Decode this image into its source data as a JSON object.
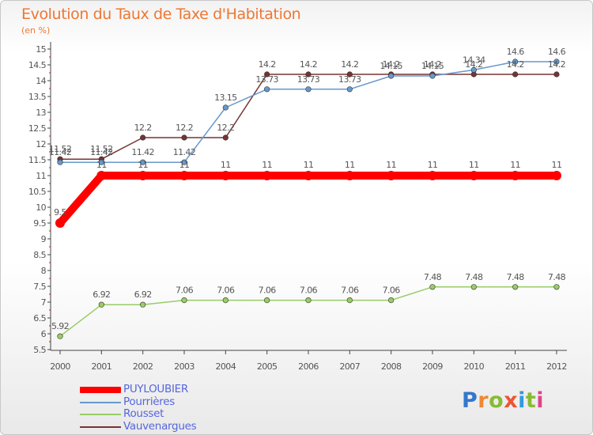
{
  "header": {
    "title": "Evolution du Taux de Taxe d'Habitation",
    "unit": "(en %)"
  },
  "logo": {
    "text": "Proxiti",
    "colors": [
      "#3377cc",
      "#ee8833",
      "#88bb33",
      "#ee5533",
      "#3399dd",
      "#88bb33",
      "#dd4488"
    ]
  },
  "chart_data": {
    "type": "line",
    "x": [
      "2000",
      "2001",
      "2002",
      "2003",
      "2004",
      "2005",
      "2006",
      "2007",
      "2008",
      "2009",
      "2010",
      "2011",
      "2012"
    ],
    "ylim": [
      5.5,
      15
    ],
    "yticks": [
      "5.5",
      "6",
      "6.5",
      "7",
      "7.5",
      "8",
      "8.5",
      "9",
      "9.5",
      "10",
      "10.5",
      "11",
      "11.5",
      "12",
      "12.5",
      "13",
      "13.5",
      "14",
      "14.5",
      "15"
    ],
    "grid": false,
    "legend_position": "bottom-left",
    "series": [
      {
        "name": "PUYLOUBIER",
        "color": "#ff0000",
        "values": [
          9.5,
          11,
          11,
          11,
          11,
          11,
          11,
          11,
          11,
          11,
          11,
          11,
          11
        ],
        "labels": [
          "9.5",
          "11",
          "11",
          "11",
          "11",
          "11",
          "11",
          "11",
          "11",
          "11",
          "11",
          "11",
          "11"
        ]
      },
      {
        "name": "Pourrières",
        "color": "#6699cc",
        "values": [
          11.42,
          11.42,
          11.42,
          11.42,
          13.15,
          13.73,
          13.73,
          13.73,
          14.15,
          14.15,
          14.34,
          14.6,
          14.6
        ],
        "labels": [
          "11.42",
          "11.42",
          "11.42",
          "11.42",
          "13.15",
          "13.73",
          "13.73",
          "13.73",
          "14.15",
          "14.15",
          "14.34",
          "14.6",
          "14.6"
        ]
      },
      {
        "name": "Rousset",
        "color": "#99cc66",
        "values": [
          5.92,
          6.92,
          6.92,
          7.06,
          7.06,
          7.06,
          7.06,
          7.06,
          7.06,
          7.48,
          7.48,
          7.48,
          7.48
        ],
        "labels": [
          "5.92",
          "6.92",
          "6.92",
          "7.06",
          "7.06",
          "7.06",
          "7.06",
          "7.06",
          "7.06",
          "7.48",
          "7.48",
          "7.48",
          "7.48"
        ]
      },
      {
        "name": "Vauvenargues",
        "color": "#773333",
        "values": [
          11.52,
          11.52,
          12.2,
          12.2,
          12.2,
          14.2,
          14.2,
          14.2,
          14.2,
          14.2,
          14.2,
          14.2,
          14.2
        ],
        "labels": [
          "11.52",
          "11.52",
          "12.2",
          "12.2",
          "12.2",
          "14.2",
          "14.2",
          "14.2",
          "14.2",
          "14.2",
          "14.2",
          "14.2",
          "14.2"
        ]
      }
    ]
  }
}
